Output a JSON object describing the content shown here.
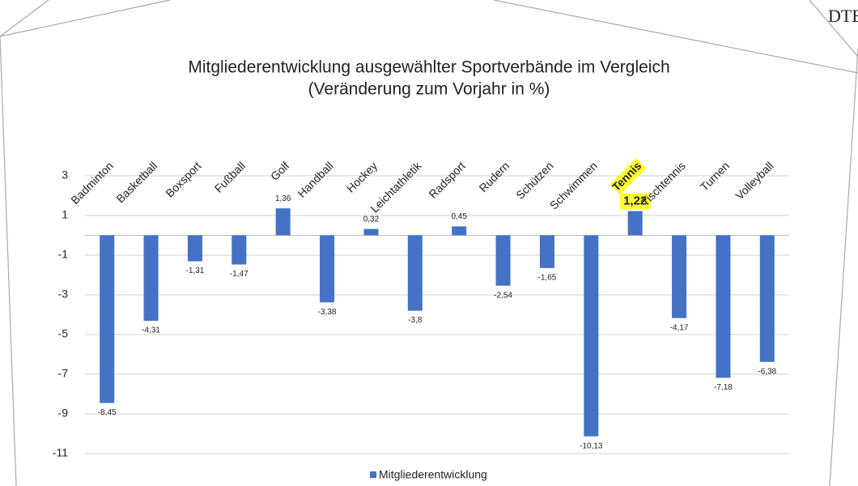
{
  "chart_data": {
    "type": "bar",
    "title": "Mitgliederentwicklung ausgewählter Sportverbände im Vergleich",
    "subtitle": "(Veränderung zum Vorjahr in %)",
    "categories": [
      "Badminton",
      "Basketball",
      "Boxsport",
      "Fußball",
      "Golf",
      "Handball",
      "Hockey",
      "Leichtathletik",
      "Radsport",
      "Rudern",
      "Schützen",
      "Schwimmen",
      "Tennis",
      "Tischtennis",
      "Turnen",
      "Volleyball"
    ],
    "series": [
      {
        "name": "Mitgliederentwicklung",
        "color": "#4472c4",
        "values": [
          -8.45,
          -4.31,
          -1.31,
          -1.47,
          1.36,
          -3.38,
          0.32,
          -3.8,
          0.45,
          -2.54,
          -1.65,
          -10.13,
          1.22,
          -4.17,
          -7.18,
          -6.38
        ],
        "value_labels": [
          "-8,45",
          "-4,31",
          "-1,31",
          "-1,47",
          "1,36",
          "-3,38",
          "0,32",
          "-3,8",
          "0,45",
          "-2,54",
          "-1,65",
          "-10,13",
          "1,22",
          "-4,17",
          "-7,18",
          "-6,38"
        ]
      }
    ],
    "ylim": [
      -11,
      3
    ],
    "yticks": [
      3,
      1,
      -1,
      -3,
      -5,
      -7,
      -9,
      -11
    ],
    "grid": true,
    "highlight": "Tennis",
    "highlight_color": "#ffff33",
    "legend": "bottom"
  }
}
